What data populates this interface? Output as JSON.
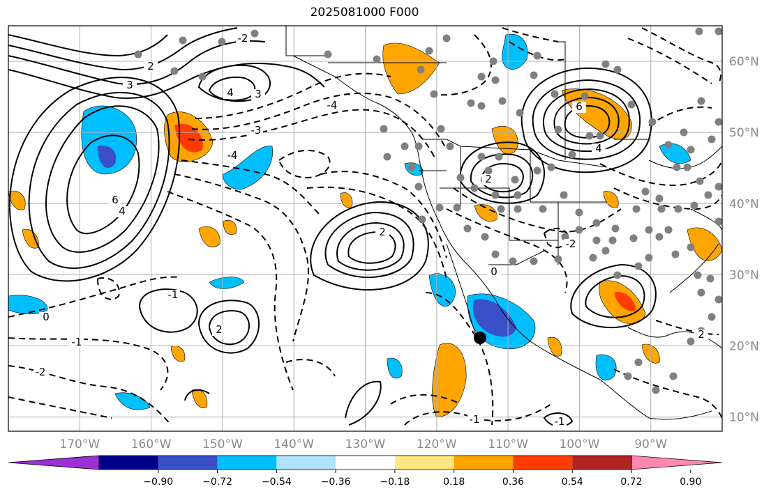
{
  "title": "2025081000 F000",
  "map": {
    "lon_labels": [
      "170°W",
      "160°W",
      "150°W",
      "140°W",
      "130°W",
      "120°W",
      "110°W",
      "100°W",
      "90°W"
    ],
    "lat_labels": [
      "60°N",
      "50°N",
      "40°N",
      "30°N",
      "20°N",
      "10°N"
    ],
    "lon_range": [
      -180,
      -80
    ],
    "lat_range": [
      8,
      65
    ],
    "grid": true
  },
  "colorbar": {
    "ticks": [
      "−0.90",
      "−0.72",
      "−0.54",
      "−0.36",
      "−0.18",
      "0.18",
      "0.36",
      "0.54",
      "0.72",
      "0.90"
    ],
    "colors": [
      "#9b30d4",
      "#00008b",
      "#3a50c8",
      "#00bfff",
      "#aee4ff",
      "#ffffff",
      "#ffe680",
      "#ffa500",
      "#ff3c00",
      "#b22222",
      "#ff88b0"
    ],
    "extend": "both"
  },
  "contour_labels": {
    "ridges": [
      "6",
      "4",
      "3",
      "2",
      "4",
      "3",
      "2",
      "2",
      "6",
      "4",
      "2",
      "2"
    ],
    "troughs": [
      "-1",
      "-1",
      "-2",
      "0",
      "-2",
      "-4",
      "-3",
      "-4",
      "-1",
      "-2",
      "0",
      "-1"
    ]
  }
}
